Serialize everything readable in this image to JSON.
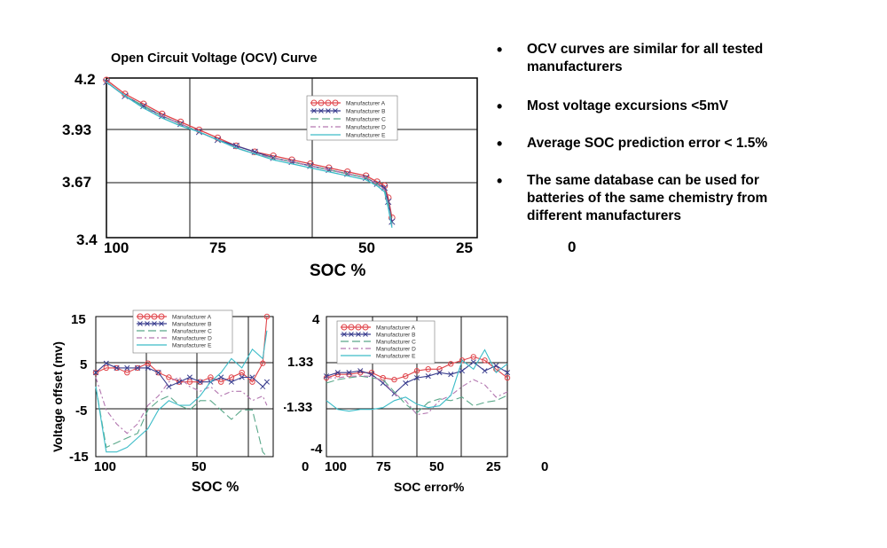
{
  "chart_data": [
    {
      "id": "ocv",
      "type": "line",
      "title": "Open Circuit Voltage (OCV) Curve",
      "xlabel": "SOC %",
      "ylabel": "",
      "x_ticks": [
        "100",
        "75",
        "50",
        "25",
        "0"
      ],
      "y_ticks": [
        "4.2",
        "3.93",
        "3.67",
        "3.4"
      ],
      "xlim": [
        100,
        0
      ],
      "ylim": [
        3.4,
        4.2
      ],
      "grid": true,
      "legend": "top-right",
      "x": [
        100,
        95,
        90,
        85,
        80,
        75,
        70,
        65,
        60,
        55,
        50,
        45,
        40,
        35,
        30,
        27,
        25,
        24,
        23
      ],
      "series": [
        {
          "name": "Manufacturer A",
          "color": "#e0454b",
          "marker": "circle",
          "values": [
            4.19,
            4.12,
            4.07,
            4.02,
            3.98,
            3.94,
            3.9,
            3.86,
            3.83,
            3.81,
            3.79,
            3.77,
            3.75,
            3.73,
            3.71,
            3.68,
            3.66,
            3.6,
            3.5
          ]
        },
        {
          "name": "Manufacturer B",
          "color": "#3b3f8f",
          "marker": "x",
          "values": [
            4.18,
            4.11,
            4.06,
            4.01,
            3.97,
            3.93,
            3.89,
            3.86,
            3.83,
            3.8,
            3.78,
            3.76,
            3.74,
            3.72,
            3.7,
            3.67,
            3.65,
            3.58,
            3.48
          ]
        },
        {
          "name": "Manufacturer C",
          "color": "#5aa88a",
          "marker": "none",
          "values": [
            4.18,
            4.11,
            4.06,
            4.01,
            3.97,
            3.93,
            3.89,
            3.85,
            3.82,
            3.8,
            3.78,
            3.76,
            3.74,
            3.72,
            3.7,
            3.67,
            3.64,
            3.57,
            3.47
          ]
        },
        {
          "name": "Manufacturer D",
          "color": "#b377b0",
          "marker": "none",
          "values": [
            4.18,
            4.11,
            4.05,
            4.01,
            3.97,
            3.93,
            3.89,
            3.85,
            3.82,
            3.8,
            3.78,
            3.76,
            3.74,
            3.72,
            3.7,
            3.67,
            3.64,
            3.56,
            3.46
          ]
        },
        {
          "name": "Manufacturer E",
          "color": "#3cbcc8",
          "marker": "none",
          "values": [
            4.18,
            4.11,
            4.05,
            4.0,
            3.96,
            3.93,
            3.89,
            3.85,
            3.82,
            3.79,
            3.77,
            3.75,
            3.73,
            3.71,
            3.69,
            3.66,
            3.63,
            3.55,
            3.45
          ]
        }
      ]
    },
    {
      "id": "offset",
      "type": "line",
      "title": "",
      "xlabel": "SOC %",
      "ylabel": "Voltage offset (mv)",
      "x_ticks": [
        "100",
        "50"
      ],
      "y_ticks": [
        "15",
        "5",
        "-5",
        "-15"
      ],
      "xlim": [
        100,
        15
      ],
      "ylim": [
        -15,
        15
      ],
      "grid": true,
      "legend": "top-center",
      "x": [
        100,
        95,
        90,
        85,
        80,
        75,
        70,
        65,
        60,
        55,
        50,
        45,
        40,
        35,
        30,
        25,
        20,
        18
      ],
      "series": [
        {
          "name": "Manufacturer A",
          "color": "#e0454b",
          "marker": "circle",
          "values": [
            3,
            4,
            4,
            3,
            4,
            5,
            3,
            2,
            1,
            1,
            1,
            2,
            1,
            2,
            3,
            1,
            5,
            15
          ]
        },
        {
          "name": "Manufacturer B",
          "color": "#3b3f8f",
          "marker": "x",
          "values": [
            3,
            5,
            4,
            4,
            4,
            4,
            3,
            0,
            1,
            2,
            1,
            1,
            2,
            1,
            2,
            2,
            0,
            1
          ]
        },
        {
          "name": "Manufacturer C",
          "color": "#5aa88a",
          "marker": "none",
          "values": [
            0,
            -13,
            -12,
            -11,
            -10,
            -5,
            -3,
            -2,
            -4,
            -5,
            -3,
            -3,
            -5,
            -7,
            -5,
            -5,
            -14,
            -15
          ]
        },
        {
          "name": "Manufacturer D",
          "color": "#b377b0",
          "marker": "none",
          "values": [
            2,
            -5,
            -8,
            -10,
            -8,
            -4,
            -2,
            1,
            2,
            0,
            -1,
            0,
            -2,
            -1,
            -1,
            -3,
            -2,
            -4
          ]
        },
        {
          "name": "Manufacturer E",
          "color": "#3cbcc8",
          "marker": "none",
          "values": [
            0,
            -14,
            -14,
            -13,
            -11,
            -9,
            -5,
            -3,
            -4,
            -4,
            -2,
            1,
            3,
            6,
            4,
            8,
            6,
            12
          ]
        }
      ]
    },
    {
      "id": "socerr",
      "type": "line",
      "title": "",
      "xlabel": "SOC error%",
      "ylabel": "",
      "x_ticks": [
        "100",
        "75",
        "50",
        "25",
        "0"
      ],
      "y_ticks": [
        "4",
        "1.33",
        "-1.33",
        "-4"
      ],
      "xlim": [
        100,
        20
      ],
      "ylim": [
        -4,
        4
      ],
      "grid": true,
      "legend": "top-center",
      "x": [
        100,
        95,
        90,
        85,
        80,
        75,
        70,
        65,
        60,
        55,
        50,
        45,
        40,
        35,
        30,
        25,
        20
      ],
      "series": [
        {
          "name": "Manufacturer A",
          "color": "#e0454b",
          "marker": "circle",
          "values": [
            0.5,
            0.7,
            0.7,
            0.8,
            0.8,
            0.5,
            0.4,
            0.6,
            0.9,
            1.0,
            1.0,
            1.3,
            1.5,
            1.7,
            1.5,
            1.0,
            0.5
          ]
        },
        {
          "name": "Manufacturer B",
          "color": "#3b3f8f",
          "marker": "x",
          "values": [
            0.6,
            0.8,
            0.8,
            0.9,
            0.7,
            0.2,
            -0.4,
            0.2,
            0.5,
            0.6,
            0.8,
            0.7,
            0.9,
            1.4,
            0.9,
            1.2,
            0.8
          ]
        },
        {
          "name": "Manufacturer C",
          "color": "#5aa88a",
          "marker": "none",
          "values": [
            0.2,
            0.4,
            0.5,
            0.6,
            0.5,
            0.4,
            -0.3,
            -1.0,
            -1.5,
            -0.9,
            -0.7,
            -0.8,
            -0.6,
            -1.1,
            -0.9,
            -0.8,
            -0.5
          ]
        },
        {
          "name": "Manufacturer D",
          "color": "#b377b0",
          "marker": "none",
          "values": [
            0.5,
            0.5,
            0.6,
            0.6,
            0.6,
            0.3,
            -0.4,
            -0.8,
            -1.6,
            -1.5,
            -0.8,
            -0.5,
            0.0,
            0.4,
            0.1,
            -0.6,
            -0.3
          ]
        },
        {
          "name": "Manufacturer E",
          "color": "#3cbcc8",
          "marker": "none",
          "values": [
            -0.8,
            -1.3,
            -1.4,
            -1.3,
            -1.3,
            -1.2,
            -0.8,
            -0.6,
            -1.0,
            -1.2,
            -1.1,
            -0.5,
            1.5,
            1.0,
            2.1,
            0.8,
            1.3
          ]
        }
      ]
    }
  ],
  "bullets": [
    "OCV curves are similar for all tested manufacturers",
    "Most voltage excursions <5mV",
    "Average SOC prediction error < 1.5%",
    "The same database can be used for batteries of the same chemistry from different manufacturers"
  ],
  "bullet_symbol": "•"
}
